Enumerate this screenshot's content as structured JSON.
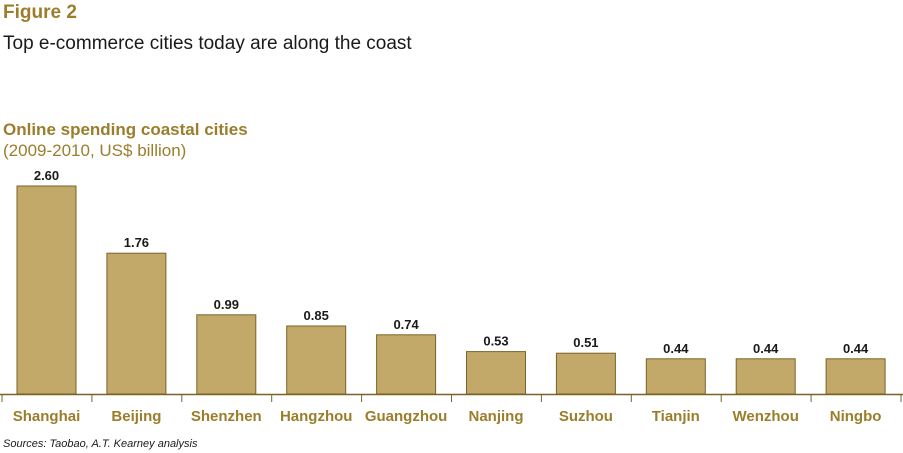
{
  "figure": {
    "label": "Figure 2",
    "title": "Top e-commerce cities today are along the coast",
    "source": "Sources: Taobao, A.T. Kearney analysis"
  },
  "colors": {
    "accent": "#9b7e2c",
    "bar_fill": "#c2a96a",
    "bar_stroke": "#7a6328",
    "axis": "#7a6328"
  },
  "chart_data": {
    "type": "bar",
    "title": "Online spending coastal cities",
    "subtitle": "(2009-2010, US$ billion)",
    "categories": [
      "Shanghai",
      "Beijing",
      "Shenzhen",
      "Hangzhou",
      "Guangzhou",
      "Nanjing",
      "Suzhou",
      "Tianjin",
      "Wenzhou",
      "Ningbo"
    ],
    "values": [
      2.6,
      1.76,
      0.99,
      0.85,
      0.74,
      0.53,
      0.51,
      0.44,
      0.44,
      0.44
    ],
    "value_labels": [
      "2.60",
      "1.76",
      "0.99",
      "0.85",
      "0.74",
      "0.53",
      "0.51",
      "0.44",
      "0.44",
      "0.44"
    ],
    "xlabel": "",
    "ylabel": "",
    "ylim": [
      0,
      2.6
    ],
    "grid": false,
    "legend": "none"
  }
}
